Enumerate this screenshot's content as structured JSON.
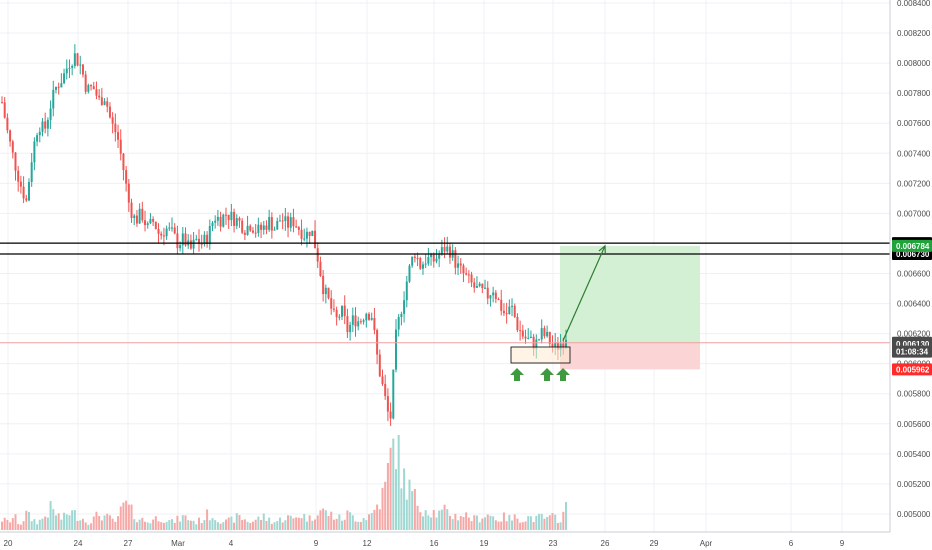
{
  "chart_data": {
    "type": "candlestick",
    "y_range": [
      0.00488,
      0.00842
    ],
    "y_ticks": [
      "0.008400",
      "0.008200",
      "0.008000",
      "0.007800",
      "0.007600",
      "0.007400",
      "0.007200",
      "0.007000",
      "0.006800",
      "0.006600",
      "0.006400",
      "0.006200",
      "0.006000",
      "0.005800",
      "0.005600",
      "0.005400",
      "0.005200",
      "0.005000"
    ],
    "x_ticks": [
      "20",
      "24",
      "27",
      "Mar",
      "4",
      "9",
      "12",
      "16",
      "19",
      "23",
      "26",
      "29",
      "Apr",
      "6",
      "9"
    ],
    "grid": true,
    "candle_path": [
      0.00774,
      0.00752,
      0.00735,
      0.0072,
      0.00708,
      0.0074,
      0.0076,
      0.00755,
      0.00772,
      0.00785,
      0.0079,
      0.008,
      0.00805,
      0.00798,
      0.00782,
      0.00784,
      0.00775,
      0.00778,
      0.0076,
      0.00752,
      0.0073,
      0.00705,
      0.00695,
      0.007,
      0.0069,
      0.00695,
      0.00685,
      0.0069,
      0.00687,
      0.0068,
      0.00683,
      0.00675,
      0.00682,
      0.0068,
      0.00685,
      0.00698,
      0.00696,
      0.007,
      0.00697,
      0.00695,
      0.0069,
      0.00693,
      0.00688,
      0.0069,
      0.00695,
      0.0069,
      0.00697,
      0.00692,
      0.00695,
      0.0069,
      0.00685,
      0.0069,
      0.00672,
      0.0065,
      0.0064,
      0.00628,
      0.00635,
      0.00622,
      0.0063,
      0.00628,
      0.00635,
      0.00632,
      0.006,
      0.0058,
      0.0056,
      0.0062,
      0.0064,
      0.0066,
      0.00675,
      0.00665,
      0.0067,
      0.00668,
      0.00672,
      0.00677,
      0.00675,
      0.00665,
      0.0066,
      0.00655,
      0.0065,
      0.00648,
      0.00645,
      0.0065,
      0.0064,
      0.00632,
      0.00638,
      0.00625,
      0.00618,
      0.00615,
      0.00613,
      0.0062,
      0.00617,
      0.0061,
      0.00613,
      0.00619
    ],
    "volume_path": [
      0.2,
      0.15,
      0.25,
      0.1,
      0.3,
      0.2,
      0.15,
      0.25,
      0.4,
      0.3,
      0.2,
      0.35,
      0.3,
      0.25,
      0.15,
      0.2,
      0.3,
      0.25,
      0.2,
      0.15,
      0.5,
      0.4,
      0.25,
      0.2,
      0.15,
      0.2,
      0.25,
      0.2,
      0.15,
      0.2,
      0.25,
      0.2,
      0.15,
      0.2,
      0.3,
      0.25,
      0.2,
      0.15,
      0.2,
      0.25,
      0.2,
      0.15,
      0.2,
      0.25,
      0.2,
      0.15,
      0.2,
      0.25,
      0.2,
      0.3,
      0.25,
      0.2,
      0.4,
      0.35,
      0.3,
      0.25,
      0.2,
      0.3,
      0.25,
      0.2,
      0.25,
      0.3,
      0.5,
      0.7,
      1.3,
      1.8,
      1.0,
      0.8,
      0.6,
      0.45,
      0.4,
      0.35,
      0.3,
      0.35,
      0.3,
      0.25,
      0.3,
      0.25,
      0.2,
      0.25,
      0.3,
      0.25,
      0.2,
      0.25,
      0.2,
      0.25,
      0.2,
      0.25,
      0.2,
      0.25,
      0.2,
      0.25,
      0.2,
      0.4
    ],
    "levels": [
      {
        "value": 0.006802,
        "label": "0.006802",
        "bg": "#000000",
        "style": "solid-black"
      },
      {
        "value": 0.00673,
        "label": "0.006730",
        "bg": "#000000",
        "style": "solid-black"
      },
      {
        "value": 0.006139,
        "label": "0.006139",
        "bg": "#4a4a4a",
        "style": "price-line"
      }
    ],
    "badges": [
      {
        "value": 0.006784,
        "label": "0.006784",
        "bg": "#1fa33a"
      },
      {
        "value": 0.00613,
        "label": "0.006130",
        "bg": "#4a4a4a"
      },
      {
        "value": 0.00608,
        "label": "01:08:34",
        "bg": "#4a4a4a"
      },
      {
        "value": 0.005962,
        "label": "0.005962",
        "bg": "#ff2a2a"
      }
    ],
    "position": {
      "entry": 0.006139,
      "target": 0.006784,
      "stop": 0.005962,
      "profit_color": "#d4f0d4",
      "loss_color": "#fbd5d5"
    },
    "arrow": {
      "from": 0.006139,
      "to": 0.006784
    },
    "colors": {
      "up": "#26a69a",
      "down": "#ef5350",
      "vol_up": "#9fd8d2",
      "vol_down": "#f5a8a6",
      "grid": "#eef0f4",
      "axis_text": "#4a4a4a",
      "marker_arrow": "#3f9a3f"
    }
  }
}
